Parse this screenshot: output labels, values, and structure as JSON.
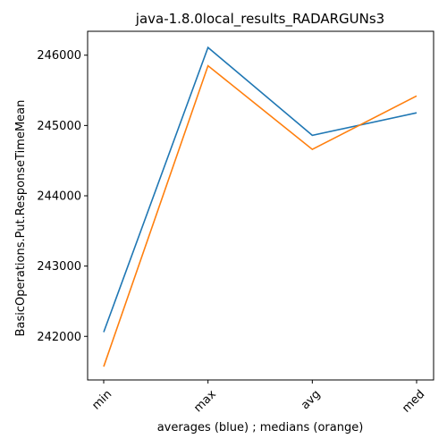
{
  "chart_data": {
    "type": "line",
    "title": "java-1.8.0local_results_RADARGUNs3",
    "xlabel": "averages (blue) ; medians (orange)",
    "ylabel": "BasicOperations.Put.ResponseTimeMean",
    "categories": [
      "min",
      "max",
      "avg",
      "med"
    ],
    "yticks": [
      242000,
      243000,
      244000,
      245000,
      246000
    ],
    "ytick_labels": [
      "242000",
      "243000",
      "244000",
      "245000",
      "246000"
    ],
    "ylim": [
      241380,
      246340
    ],
    "grid": false,
    "series": [
      {
        "values": [
          242060,
          246110,
          244860,
          245180
        ],
        "color": "#1f77b4"
      },
      {
        "values": [
          241570,
          245850,
          244660,
          245420
        ],
        "color": "#ff7f0e"
      }
    ]
  }
}
